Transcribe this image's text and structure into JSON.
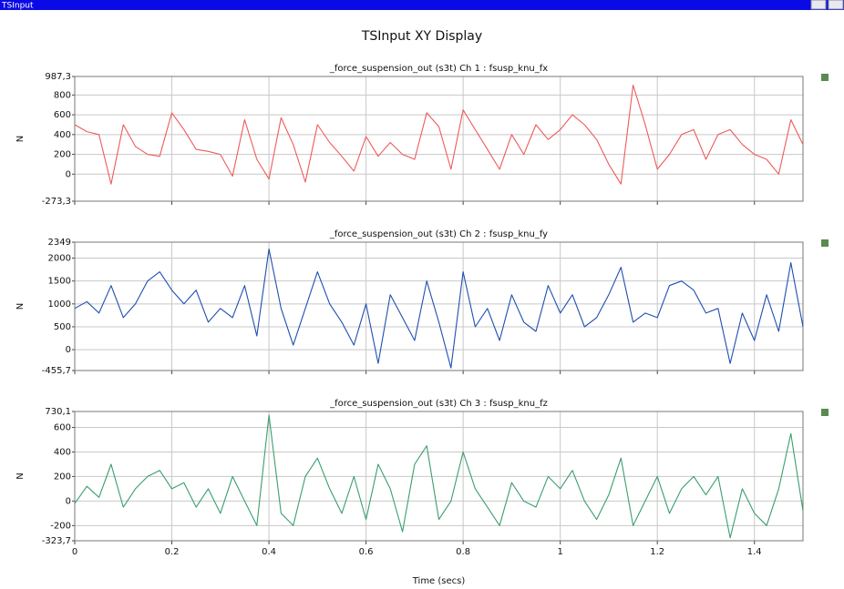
{
  "window": {
    "title": "TSInput"
  },
  "display_title": "TSInput XY Display",
  "chart_data": [
    {
      "type": "line",
      "title": "_force_suspension_out (s3t)  Ch 1 : fsusp_knu_fx",
      "ylabel": "N",
      "color": "#ee5a5a",
      "grid": true,
      "xlim": [
        0,
        1.5
      ],
      "xticks": [
        0,
        0.2,
        0.4,
        0.6,
        0.8,
        1,
        1.2,
        1.4
      ],
      "ylim": [
        -273.3,
        987.3
      ],
      "yticks": [
        {
          "value": -273.3,
          "label": "-273,3"
        },
        0,
        200,
        400,
        600,
        800,
        {
          "value": 987.3,
          "label": "987,3"
        }
      ],
      "x": [
        0,
        0.025,
        0.05,
        0.075,
        0.1,
        0.125,
        0.15,
        0.175,
        0.2,
        0.225,
        0.25,
        0.275,
        0.3,
        0.325,
        0.35,
        0.375,
        0.4,
        0.425,
        0.45,
        0.475,
        0.5,
        0.525,
        0.55,
        0.575,
        0.6,
        0.625,
        0.65,
        0.675,
        0.7,
        0.725,
        0.75,
        0.775,
        0.8,
        0.825,
        0.85,
        0.875,
        0.9,
        0.925,
        0.95,
        0.975,
        1.0,
        1.025,
        1.05,
        1.075,
        1.1,
        1.125,
        1.15,
        1.175,
        1.2,
        1.225,
        1.25,
        1.275,
        1.3,
        1.325,
        1.35,
        1.375,
        1.4,
        1.425,
        1.45,
        1.475,
        1.5
      ],
      "values": [
        500,
        430,
        400,
        -100,
        500,
        280,
        200,
        180,
        620,
        450,
        250,
        230,
        200,
        -20,
        550,
        150,
        -50,
        570,
        300,
        -80,
        500,
        320,
        180,
        30,
        380,
        180,
        320,
        200,
        150,
        620,
        480,
        50,
        650,
        450,
        250,
        50,
        400,
        200,
        500,
        350,
        450,
        600,
        500,
        350,
        100,
        -100,
        900,
        500,
        50,
        200,
        400,
        450,
        150,
        400,
        450,
        300,
        200,
        150,
        0,
        550,
        300
      ]
    },
    {
      "type": "line",
      "title": "_force_suspension_out (s3t)  Ch 2 : fsusp_knu_fy",
      "ylabel": "N",
      "color": "#1f4fb0",
      "grid": true,
      "xlim": [
        0,
        1.5
      ],
      "xticks": [
        0,
        0.2,
        0.4,
        0.6,
        0.8,
        1,
        1.2,
        1.4
      ],
      "ylim": [
        -455.7,
        2349
      ],
      "yticks": [
        {
          "value": -455.7,
          "label": "-455,7"
        },
        0,
        500,
        1000,
        1500,
        2000,
        2349
      ],
      "x": [
        0,
        0.025,
        0.05,
        0.075,
        0.1,
        0.125,
        0.15,
        0.175,
        0.2,
        0.225,
        0.25,
        0.275,
        0.3,
        0.325,
        0.35,
        0.375,
        0.4,
        0.425,
        0.45,
        0.475,
        0.5,
        0.525,
        0.55,
        0.575,
        0.6,
        0.625,
        0.65,
        0.675,
        0.7,
        0.725,
        0.75,
        0.775,
        0.8,
        0.825,
        0.85,
        0.875,
        0.9,
        0.925,
        0.95,
        0.975,
        1.0,
        1.025,
        1.05,
        1.075,
        1.1,
        1.125,
        1.15,
        1.175,
        1.2,
        1.225,
        1.25,
        1.275,
        1.3,
        1.325,
        1.35,
        1.375,
        1.4,
        1.425,
        1.45,
        1.475,
        1.5
      ],
      "values": [
        900,
        1050,
        800,
        1400,
        700,
        1000,
        1500,
        1700,
        1300,
        1000,
        1300,
        600,
        900,
        700,
        1400,
        300,
        2200,
        900,
        100,
        900,
        1700,
        1000,
        600,
        100,
        1000,
        -300,
        1200,
        700,
        200,
        1500,
        600,
        -400,
        1700,
        500,
        900,
        200,
        1200,
        600,
        400,
        1400,
        800,
        1200,
        500,
        700,
        1200,
        1800,
        600,
        800,
        700,
        1400,
        1500,
        1300,
        800,
        900,
        -300,
        800,
        200,
        1200,
        400,
        1900,
        500
      ]
    },
    {
      "type": "line",
      "title": "_force_suspension_out (s3t)  Ch 3 : fsusp_knu_fz",
      "ylabel": "N",
      "xlabel": "Time (secs)",
      "color": "#3a9e6e",
      "grid": true,
      "xlim": [
        0,
        1.5
      ],
      "xticks": [
        0,
        0.2,
        0.4,
        0.6,
        0.8,
        1,
        1.2,
        1.4
      ],
      "ylim": [
        -323.7,
        730.1
      ],
      "yticks": [
        {
          "value": -323.7,
          "label": "-323,7"
        },
        -200,
        0,
        200,
        400,
        600,
        {
          "value": 730.1,
          "label": "730,1"
        }
      ],
      "x": [
        0,
        0.025,
        0.05,
        0.075,
        0.1,
        0.125,
        0.15,
        0.175,
        0.2,
        0.225,
        0.25,
        0.275,
        0.3,
        0.325,
        0.35,
        0.375,
        0.4,
        0.425,
        0.45,
        0.475,
        0.5,
        0.525,
        0.55,
        0.575,
        0.6,
        0.625,
        0.65,
        0.675,
        0.7,
        0.725,
        0.75,
        0.775,
        0.8,
        0.825,
        0.85,
        0.875,
        0.9,
        0.925,
        0.95,
        0.975,
        1.0,
        1.025,
        1.05,
        1.075,
        1.1,
        1.125,
        1.15,
        1.175,
        1.2,
        1.225,
        1.25,
        1.275,
        1.3,
        1.325,
        1.35,
        1.375,
        1.4,
        1.425,
        1.45,
        1.475,
        1.5
      ],
      "values": [
        -20,
        120,
        30,
        300,
        -50,
        100,
        200,
        250,
        100,
        150,
        -50,
        100,
        -100,
        200,
        0,
        -200,
        700,
        -100,
        -200,
        200,
        350,
        100,
        -100,
        200,
        -150,
        300,
        100,
        -250,
        300,
        450,
        -150,
        0,
        400,
        100,
        -50,
        -200,
        150,
        0,
        -50,
        200,
        100,
        250,
        0,
        -150,
        50,
        350,
        -200,
        0,
        200,
        -100,
        100,
        200,
        50,
        200,
        -300,
        100,
        -100,
        -200,
        100,
        550,
        -80
      ]
    }
  ]
}
